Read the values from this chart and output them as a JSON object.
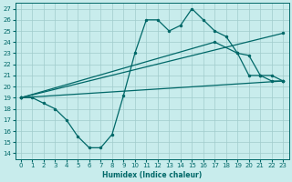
{
  "xlabel": "Humidex (Indice chaleur)",
  "bg_color": "#c8ecec",
  "grid_color": "#a0cccc",
  "line_color": "#006868",
  "xlim": [
    -0.5,
    23.5
  ],
  "ylim": [
    13.5,
    27.5
  ],
  "yticks": [
    14,
    15,
    16,
    17,
    18,
    19,
    20,
    21,
    22,
    23,
    24,
    25,
    26,
    27
  ],
  "xticks": [
    0,
    1,
    2,
    3,
    4,
    5,
    6,
    7,
    8,
    9,
    10,
    11,
    12,
    13,
    14,
    15,
    16,
    17,
    18,
    19,
    20,
    21,
    22,
    23
  ],
  "line1_x": [
    0,
    1,
    2,
    3,
    4,
    5,
    6,
    7,
    8,
    9,
    10,
    11,
    12,
    13,
    14,
    15,
    16,
    17,
    18,
    19,
    20,
    21,
    22,
    23
  ],
  "line1_y": [
    19,
    19,
    18.5,
    18.0,
    17.0,
    15.5,
    14.5,
    14.5,
    15.7,
    19.2,
    23.0,
    26.0,
    26.0,
    25.0,
    25.5,
    27.0,
    26.0,
    25.0,
    24.5,
    23.0,
    21.0,
    21.0,
    20.5,
    20.5
  ],
  "line2_x": [
    0,
    23
  ],
  "line2_y": [
    19,
    24.8
  ],
  "line3_x": [
    0,
    17,
    19,
    20,
    21,
    22,
    23
  ],
  "line3_y": [
    19,
    24.0,
    23.0,
    22.8,
    21.0,
    21.0,
    20.5
  ],
  "line4_x": [
    0,
    23
  ],
  "line4_y": [
    19,
    20.5
  ]
}
